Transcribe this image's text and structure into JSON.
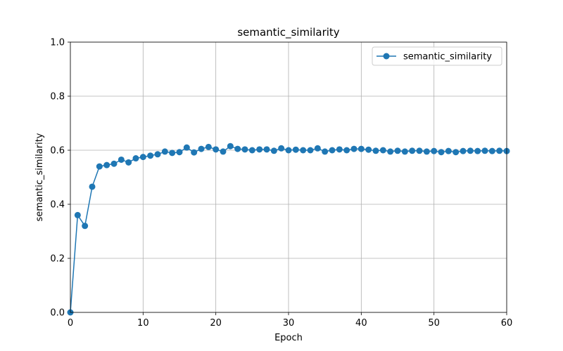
{
  "chart_data": {
    "type": "line",
    "title": "semantic_similarity",
    "xlabel": "Epoch",
    "ylabel": "semantic_similarity",
    "xlim": [
      0,
      60
    ],
    "ylim": [
      0.0,
      1.0
    ],
    "xticks": [
      "0",
      "10",
      "20",
      "30",
      "40",
      "50",
      "60"
    ],
    "yticks": [
      "0.0",
      "0.2",
      "0.4",
      "0.6",
      "0.8",
      "1.0"
    ],
    "grid": true,
    "legend_position": "top-right",
    "series": [
      {
        "name": "semantic_similarity",
        "color": "#1f77b4",
        "marker": "circle",
        "x": [
          0,
          1,
          2,
          3,
          4,
          5,
          6,
          7,
          8,
          9,
          10,
          11,
          12,
          13,
          14,
          15,
          16,
          17,
          18,
          19,
          20,
          21,
          22,
          23,
          24,
          25,
          26,
          27,
          28,
          29,
          30,
          31,
          32,
          33,
          34,
          35,
          36,
          37,
          38,
          39,
          40,
          41,
          42,
          43,
          44,
          45,
          46,
          47,
          48,
          49,
          50,
          51,
          52,
          53,
          54,
          55,
          56,
          57,
          58,
          59,
          60
        ],
        "y": [
          0.0,
          0.36,
          0.32,
          0.465,
          0.54,
          0.545,
          0.55,
          0.565,
          0.555,
          0.57,
          0.575,
          0.58,
          0.585,
          0.595,
          0.59,
          0.593,
          0.61,
          0.592,
          0.605,
          0.612,
          0.603,
          0.595,
          0.615,
          0.605,
          0.603,
          0.6,
          0.603,
          0.603,
          0.598,
          0.607,
          0.6,
          0.602,
          0.6,
          0.6,
          0.607,
          0.595,
          0.6,
          0.603,
          0.6,
          0.605,
          0.605,
          0.602,
          0.598,
          0.6,
          0.595,
          0.598,
          0.595,
          0.598,
          0.598,
          0.595,
          0.597,
          0.593,
          0.597,
          0.593,
          0.597,
          0.598,
          0.597,
          0.598,
          0.597,
          0.598,
          0.597
        ]
      }
    ]
  }
}
